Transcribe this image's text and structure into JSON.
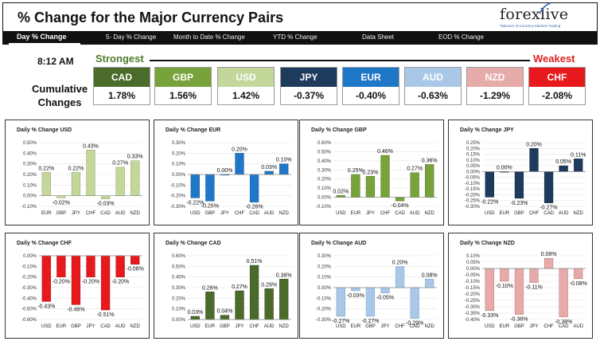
{
  "header": {
    "title": "% Change for the Major Currency Pairs",
    "logo": "forexlive",
    "logo_tagline": "Takeover of Currency Markets Trading"
  },
  "tabs": [
    {
      "label": "Day % Change",
      "active": true
    },
    {
      "label": "5- Day % Change",
      "active": false
    },
    {
      "label": "Month to Date % Change",
      "active": false
    },
    {
      "label": "YTD % Change",
      "active": false
    },
    {
      "label": "Data Sheet",
      "active": false
    },
    {
      "label": "EOD % Change",
      "active": false
    }
  ],
  "summary": {
    "time": "8:12 AM",
    "strongest_label": "Strongest",
    "weakest_label": "Weakest",
    "cumulative_label_line1": "Cumulative",
    "cumulative_label_line2": "Changes",
    "currencies": [
      {
        "code": "CAD",
        "value": "1.78%",
        "color": "#4a6b2a"
      },
      {
        "code": "GBP",
        "value": "1.56%",
        "color": "#77a33a"
      },
      {
        "code": "USD",
        "value": "1.42%",
        "color": "#c3d79b"
      },
      {
        "code": "JPY",
        "value": "-0.37%",
        "color": "#1e3b5e"
      },
      {
        "code": "EUR",
        "value": "-0.40%",
        "color": "#1f77c8"
      },
      {
        "code": "AUD",
        "value": "-0.63%",
        "color": "#a9c8e8"
      },
      {
        "code": "NZD",
        "value": "-1.29%",
        "color": "#e6aaa8"
      },
      {
        "code": "CHF",
        "value": "-2.08%",
        "color": "#e8191c"
      }
    ]
  },
  "chart_data": [
    {
      "type": "bar",
      "title": "Daily % Change USD",
      "categories": [
        "EUR",
        "GBP",
        "JPY",
        "CHF",
        "CAD",
        "AUD",
        "NZD"
      ],
      "values": [
        0.22,
        -0.02,
        0.22,
        0.43,
        -0.03,
        0.27,
        0.33
      ],
      "labels": [
        "0.22%",
        "-0.02%",
        "0.22%",
        "0.43%",
        "-0.03%",
        "0.27%",
        "0.33%"
      ],
      "ylim": [
        -0.1,
        0.5
      ],
      "ticks": [
        -0.1,
        0,
        0.1,
        0.2,
        0.3,
        0.4,
        0.5
      ],
      "tick_labels": [
        "-0.10%",
        "0.00%",
        "0.10%",
        "0.20%",
        "0.30%",
        "0.40%",
        "0.50%"
      ],
      "color": "#c3d79b",
      "edge": "#8fa564"
    },
    {
      "type": "bar",
      "title": "Daily % Change EUR",
      "categories": [
        "USD",
        "GBP",
        "JPY",
        "CHF",
        "CAD",
        "AUD",
        "NZD"
      ],
      "values": [
        -0.22,
        -0.25,
        0.0,
        0.2,
        -0.26,
        0.03,
        0.1
      ],
      "labels": [
        "-0.22%",
        "-0.25%",
        "0.00%",
        "0.20%",
        "-0.26%",
        "0.03%",
        "0.10%"
      ],
      "ylim": [
        -0.3,
        0.3
      ],
      "ticks": [
        -0.3,
        -0.2,
        -0.1,
        0,
        0.1,
        0.2,
        0.3
      ],
      "tick_labels": [
        "-0.30%",
        "-0.20%",
        "-0.10%",
        "0.00%",
        "0.10%",
        "0.20%",
        "0.30%"
      ],
      "color": "#1f77c8",
      "edge": "#15558f"
    },
    {
      "type": "bar",
      "title": "Daily % Change GBP",
      "categories": [
        "USD",
        "EUR",
        "JPY",
        "CHF",
        "CAD",
        "AUD",
        "NZD"
      ],
      "values": [
        0.02,
        0.25,
        0.23,
        0.46,
        -0.04,
        0.27,
        0.36
      ],
      "labels": [
        "0.02%",
        "0.25%",
        "0.23%",
        "0.46%",
        "-0.04%",
        "0.27%",
        "0.36%"
      ],
      "ylim": [
        -0.1,
        0.6
      ],
      "ticks": [
        -0.1,
        0,
        0.1,
        0.2,
        0.3,
        0.4,
        0.5,
        0.6
      ],
      "tick_labels": [
        "-0.10%",
        "0.00%",
        "0.10%",
        "0.20%",
        "0.30%",
        "0.40%",
        "0.50%",
        "0.60%"
      ],
      "color": "#77a33a",
      "edge": "#4f7126"
    },
    {
      "type": "bar",
      "title": "Daily % Change JPY",
      "categories": [
        "USD",
        "EUR",
        "GBP",
        "CHF",
        "CAD",
        "AUD",
        "NZD"
      ],
      "values": [
        -0.22,
        0.0,
        -0.23,
        0.2,
        -0.27,
        0.05,
        0.11
      ],
      "labels": [
        "-0.22%",
        "0.00%",
        "-0.23%",
        "0.20%",
        "-0.27%",
        "0.05%",
        "0.11%"
      ],
      "ylim": [
        -0.3,
        0.25
      ],
      "ticks": [
        -0.3,
        -0.25,
        -0.2,
        -0.15,
        -0.1,
        -0.05,
        0,
        0.05,
        0.1,
        0.15,
        0.2,
        0.25
      ],
      "tick_labels": [
        "-0.30%",
        "-0.25%",
        "-0.20%",
        "-0.15%",
        "-0.10%",
        "-0.05%",
        "0.00%",
        "0.05%",
        "0.10%",
        "0.15%",
        "0.20%",
        "0.25%"
      ],
      "color": "#1e3b5e",
      "edge": "#10223a"
    },
    {
      "type": "bar",
      "title": "Daily % Change CHF",
      "categories": [
        "USD",
        "EUR",
        "GBP",
        "JPY",
        "CAD",
        "AUD",
        "NZD"
      ],
      "values": [
        -0.43,
        -0.2,
        -0.46,
        -0.2,
        -0.51,
        -0.2,
        -0.08
      ],
      "labels": [
        "-0.43%",
        "-0.20%",
        "-0.46%",
        "-0.20%",
        "-0.51%",
        "-0.20%",
        "-0.08%"
      ],
      "ylim": [
        -0.6,
        0.0
      ],
      "ticks": [
        -0.6,
        -0.5,
        -0.4,
        -0.3,
        -0.2,
        -0.1,
        0
      ],
      "tick_labels": [
        "-0.60%",
        "-0.50%",
        "-0.40%",
        "-0.30%",
        "-0.20%",
        "-0.10%",
        "0.00%"
      ],
      "color": "#e8191c",
      "edge": "#a51012"
    },
    {
      "type": "bar",
      "title": "Daily % Change CAD",
      "categories": [
        "USD",
        "EUR",
        "GBP",
        "JPY",
        "CHF",
        "AUD",
        "NZD"
      ],
      "values": [
        0.03,
        0.26,
        0.04,
        0.27,
        0.51,
        0.29,
        0.38
      ],
      "labels": [
        "0.03%",
        "0.26%",
        "0.04%",
        "0.27%",
        "0.51%",
        "0.29%",
        "0.38%"
      ],
      "ylim": [
        0.0,
        0.6
      ],
      "ticks": [
        0,
        0.1,
        0.2,
        0.3,
        0.4,
        0.5,
        0.6
      ],
      "tick_labels": [
        "0.00%",
        "0.10%",
        "0.20%",
        "0.30%",
        "0.40%",
        "0.50%",
        "0.60%"
      ],
      "color": "#4a6b2a",
      "edge": "#2e451a"
    },
    {
      "type": "bar",
      "title": "Daily % Change AUD",
      "categories": [
        "USD",
        "EUR",
        "GBP",
        "JPY",
        "CHF",
        "CAD",
        "NZD"
      ],
      "values": [
        -0.27,
        -0.03,
        -0.27,
        -0.05,
        0.2,
        -0.29,
        0.08
      ],
      "labels": [
        "-0.27%",
        "-0.03%",
        "-0.27%",
        "-0.05%",
        "0.20%",
        "-0.29%",
        "0.08%"
      ],
      "ylim": [
        -0.3,
        0.3
      ],
      "ticks": [
        -0.3,
        -0.2,
        -0.1,
        0,
        0.1,
        0.2,
        0.3
      ],
      "tick_labels": [
        "-0.30%",
        "-0.20%",
        "-0.10%",
        "0.00%",
        "0.10%",
        "0.20%",
        "0.30%"
      ],
      "color": "#a9c8e8",
      "edge": "#7ea2c8"
    },
    {
      "type": "bar",
      "title": "Daily % Change NZD",
      "categories": [
        "USD",
        "EUR",
        "GBP",
        "JPY",
        "CHF",
        "CAD",
        "AUD"
      ],
      "values": [
        -0.33,
        -0.1,
        -0.36,
        -0.11,
        0.08,
        -0.38,
        -0.08
      ],
      "labels": [
        "-0.33%",
        "-0.10%",
        "-0.36%",
        "-0.11%",
        "0.08%",
        "-0.38%",
        "-0.08%"
      ],
      "ylim": [
        -0.4,
        0.1
      ],
      "ticks": [
        -0.4,
        -0.35,
        -0.3,
        -0.25,
        -0.2,
        -0.15,
        -0.1,
        -0.05,
        0,
        0.05,
        0.1
      ],
      "tick_labels": [
        "-0.40%",
        "-0.35%",
        "-0.30%",
        "-0.25%",
        "-0.20%",
        "-0.15%",
        "-0.10%",
        "-0.05%",
        "0.00%",
        "0.05%",
        "0.10%"
      ],
      "color": "#e6aaa8",
      "edge": "#b97775"
    }
  ]
}
